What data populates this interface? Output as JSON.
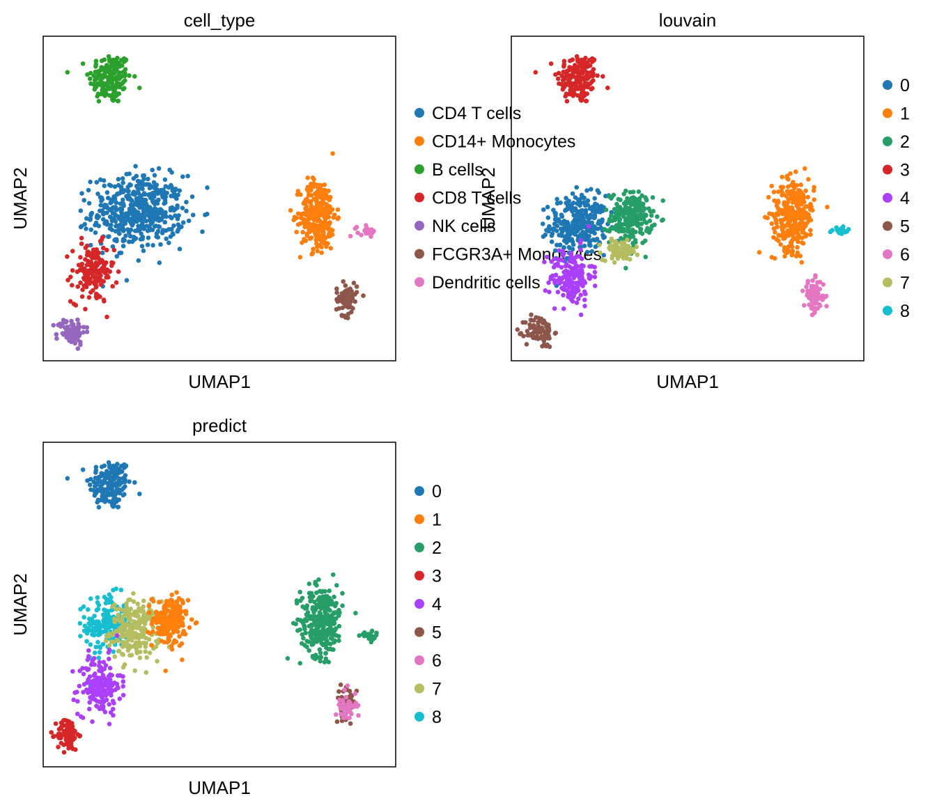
{
  "chart_data": [
    {
      "type": "scatter",
      "title": "cell_type",
      "xlabel": "UMAP1",
      "ylabel": "UMAP2",
      "xlim": [
        0,
        100
      ],
      "ylim": [
        0,
        100
      ],
      "legend_position": "right",
      "legend": [
        {
          "label": "CD4 T cells",
          "color": "#1f77b4"
        },
        {
          "label": "CD14+ Monocytes",
          "color": "#ff7f0e"
        },
        {
          "label": "B cells",
          "color": "#2ca02c"
        },
        {
          "label": "CD8 T cells",
          "color": "#d62728"
        },
        {
          "label": "NK cells",
          "color": "#9467bd"
        },
        {
          "label": "FCGR3A+ Monocytes",
          "color": "#8c564b"
        },
        {
          "label": "Dendritic cells",
          "color": "#e377c2"
        }
      ],
      "clusters": [
        {
          "category": "B cells",
          "cx": 19,
          "cy": 87,
          "rx": 6,
          "ry": 8,
          "n": 170
        },
        {
          "category": "CD4 T cells",
          "cx": 27,
          "cy": 46,
          "rx": 13,
          "ry": 11,
          "n": 480
        },
        {
          "category": "CD8 T cells",
          "cx": 14,
          "cy": 27,
          "rx": 6,
          "ry": 9,
          "n": 150
        },
        {
          "category": "NK cells",
          "cx": 8,
          "cy": 9,
          "rx": 4,
          "ry": 4,
          "n": 80
        },
        {
          "category": "CD14+ Monocytes",
          "cx": 78,
          "cy": 45,
          "rx": 5,
          "ry": 11,
          "n": 300
        },
        {
          "category": "FCGR3A+ Monocytes",
          "cx": 86,
          "cy": 19,
          "rx": 3,
          "ry": 5,
          "n": 70
        },
        {
          "category": "Dendritic cells",
          "cx": 92,
          "cy": 40,
          "rx": 3,
          "ry": 1.5,
          "n": 22
        }
      ]
    },
    {
      "type": "scatter",
      "title": "louvain",
      "xlabel": "UMAP1",
      "ylabel": "UMAP2",
      "xlim": [
        0,
        100
      ],
      "ylim": [
        0,
        100
      ],
      "legend_position": "right",
      "legend": [
        {
          "label": "0",
          "color": "#1f77b4"
        },
        {
          "label": "1",
          "color": "#ff7f0e"
        },
        {
          "label": "2",
          "color": "#279e68"
        },
        {
          "label": "3",
          "color": "#d62728"
        },
        {
          "label": "4",
          "color": "#aa40fc"
        },
        {
          "label": "5",
          "color": "#8c564b"
        },
        {
          "label": "6",
          "color": "#e377c2"
        },
        {
          "label": "7",
          "color": "#b5bd61"
        },
        {
          "label": "8",
          "color": "#17becf"
        }
      ],
      "clusters": [
        {
          "category": "3",
          "cx": 19,
          "cy": 87,
          "rx": 6,
          "ry": 8,
          "n": 170
        },
        {
          "category": "0",
          "cx": 19,
          "cy": 42,
          "rx": 8,
          "ry": 9,
          "n": 300
        },
        {
          "category": "2",
          "cx": 34,
          "cy": 44,
          "rx": 6,
          "ry": 8,
          "n": 220
        },
        {
          "category": "7",
          "cx": 31,
          "cy": 34,
          "rx": 5,
          "ry": 3,
          "n": 90
        },
        {
          "category": "4",
          "cx": 17,
          "cy": 26,
          "rx": 6,
          "ry": 9,
          "n": 170
        },
        {
          "category": "5",
          "cx": 8,
          "cy": 9,
          "rx": 4,
          "ry": 5,
          "n": 90
        },
        {
          "category": "1",
          "cx": 80,
          "cy": 45,
          "rx": 6,
          "ry": 11,
          "n": 300
        },
        {
          "category": "6",
          "cx": 86,
          "cy": 20,
          "rx": 3,
          "ry": 5,
          "n": 70
        },
        {
          "category": "8",
          "cx": 93,
          "cy": 40,
          "rx": 3,
          "ry": 1.5,
          "n": 22
        }
      ]
    },
    {
      "type": "scatter",
      "title": "predict",
      "xlabel": "UMAP1",
      "ylabel": "UMAP2",
      "xlim": [
        0,
        100
      ],
      "ylim": [
        0,
        100
      ],
      "legend_position": "right",
      "legend": [
        {
          "label": "0",
          "color": "#1f77b4"
        },
        {
          "label": "1",
          "color": "#ff7f0e"
        },
        {
          "label": "2",
          "color": "#279e68"
        },
        {
          "label": "3",
          "color": "#d62728"
        },
        {
          "label": "4",
          "color": "#aa40fc"
        },
        {
          "label": "5",
          "color": "#8c564b"
        },
        {
          "label": "6",
          "color": "#e377c2"
        },
        {
          "label": "7",
          "color": "#b5bd61"
        },
        {
          "label": "8",
          "color": "#17becf"
        }
      ],
      "clusters": [
        {
          "category": "0",
          "cx": 19,
          "cy": 87,
          "rx": 6,
          "ry": 8,
          "n": 170
        },
        {
          "category": "8",
          "cx": 18,
          "cy": 44,
          "rx": 6,
          "ry": 9,
          "n": 170
        },
        {
          "category": "7",
          "cx": 26,
          "cy": 42,
          "rx": 7,
          "ry": 9,
          "n": 220
        },
        {
          "category": "1",
          "cx": 36,
          "cy": 45,
          "rx": 5,
          "ry": 8,
          "n": 170
        },
        {
          "category": "4",
          "cx": 16,
          "cy": 25,
          "rx": 6,
          "ry": 9,
          "n": 170
        },
        {
          "category": "3",
          "cx": 7,
          "cy": 10,
          "rx": 3,
          "ry": 5,
          "n": 90
        },
        {
          "category": "2",
          "cx": 79,
          "cy": 45,
          "rx": 6,
          "ry": 11,
          "n": 300
        },
        {
          "category": "5",
          "cx": 86,
          "cy": 20,
          "rx": 3,
          "ry": 5,
          "n": 40
        },
        {
          "category": "6",
          "cx": 86,
          "cy": 19,
          "rx": 3,
          "ry": 5,
          "n": 40
        },
        {
          "category": "2",
          "cx": 93,
          "cy": 40,
          "rx": 3,
          "ry": 1.5,
          "n": 22
        }
      ]
    }
  ]
}
